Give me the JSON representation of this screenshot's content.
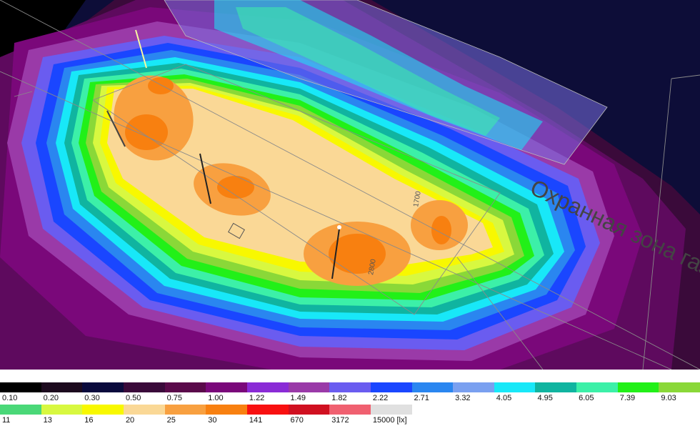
{
  "scene": {
    "overlay_label": "Охранная зона газопровода",
    "dim_labels": [
      "1700",
      "2800"
    ]
  },
  "legend": {
    "unit": "[lx]",
    "row1": [
      {
        "label": "0.10",
        "color": "#000000"
      },
      {
        "label": "0.20",
        "color": "#1c0a1e"
      },
      {
        "label": "0.30",
        "color": "#0a0a3c"
      },
      {
        "label": "0.50",
        "color": "#3a0a3a"
      },
      {
        "label": "0.75",
        "color": "#5a0a4a"
      },
      {
        "label": "1.00",
        "color": "#7a087a"
      },
      {
        "label": "1.22",
        "color": "#8a2bd6"
      },
      {
        "label": "1.49",
        "color": "#9a3aa8"
      },
      {
        "label": "1.82",
        "color": "#6a5cf0"
      },
      {
        "label": "2.22",
        "color": "#1a46ff"
      },
      {
        "label": "2.71",
        "color": "#2a86f0"
      },
      {
        "label": "3.32",
        "color": "#7aa0f0"
      },
      {
        "label": "4.05",
        "color": "#18e8f8"
      },
      {
        "label": "4.95",
        "color": "#10b4a0"
      },
      {
        "label": "6.05",
        "color": "#3cf0a8"
      },
      {
        "label": "7.39",
        "color": "#22f018"
      },
      {
        "label": "9.03",
        "color": "#8ad838"
      }
    ],
    "row2": [
      {
        "label": "11",
        "color": "#4ad878"
      },
      {
        "label": "13",
        "color": "#d8f840"
      },
      {
        "label": "16",
        "color": "#f8f800"
      },
      {
        "label": "20",
        "color": "#fad896"
      },
      {
        "label": "25",
        "color": "#f8a040"
      },
      {
        "label": "30",
        "color": "#f88010"
      },
      {
        "label": "141",
        "color": "#f81010"
      },
      {
        "label": "670",
        "color": "#d01020"
      },
      {
        "label": "3172",
        "color": "#f06070"
      },
      {
        "label": "15000 [lx]",
        "color": "#e0e0e0"
      }
    ]
  }
}
